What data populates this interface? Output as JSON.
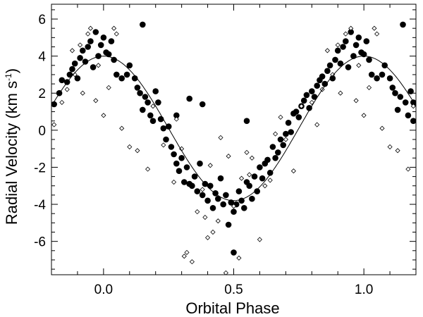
{
  "chart_data": {
    "type": "scatter",
    "xlabel": "Orbital Phase",
    "ylabel_main": "Radial Velocity (km s",
    "ylabel_sup": "-1",
    "ylabel_close": ")",
    "xlim": [
      -0.2,
      1.2
    ],
    "ylim": [
      -7.8,
      6.8
    ],
    "x_ticks": [
      {
        "value": 0.0,
        "label": "0.0"
      },
      {
        "value": 0.5,
        "label": "0.5"
      },
      {
        "value": 1.0,
        "label": "1.0"
      }
    ],
    "y_ticks": [
      {
        "value": -6,
        "label": "-6"
      },
      {
        "value": -4,
        "label": "-4"
      },
      {
        "value": -2,
        "label": "-2"
      },
      {
        "value": 0,
        "label": "0"
      },
      {
        "value": 2,
        "label": "2"
      },
      {
        "value": 4,
        "label": "4"
      },
      {
        "value": 6,
        "label": "6"
      }
    ],
    "grid": false,
    "series": [
      {
        "marker": "filled-circle",
        "points": [
          [
            -0.19,
            1.4
          ],
          [
            -0.17,
            2.0
          ],
          [
            -0.16,
            2.7
          ],
          [
            -0.14,
            2.6
          ],
          [
            -0.13,
            3.0
          ],
          [
            -0.12,
            3.3
          ],
          [
            -0.11,
            3.6
          ],
          [
            -0.1,
            2.8
          ],
          [
            -0.09,
            3.9
          ],
          [
            -0.08,
            4.3
          ],
          [
            -0.07,
            3.7
          ],
          [
            -0.06,
            4.5
          ],
          [
            -0.05,
            4.8
          ],
          [
            -0.04,
            3.4
          ],
          [
            -0.03,
            5.3
          ],
          [
            -0.02,
            4.0
          ],
          [
            -0.01,
            4.6
          ],
          [
            0.0,
            5.0
          ],
          [
            0.01,
            4.2
          ],
          [
            0.02,
            4.1
          ],
          [
            0.03,
            4.8
          ],
          [
            0.04,
            3.8
          ],
          [
            0.05,
            3.0
          ],
          [
            0.07,
            2.8
          ],
          [
            0.09,
            3.0
          ],
          [
            0.1,
            3.5
          ],
          [
            0.12,
            2.8
          ],
          [
            0.13,
            2.3
          ],
          [
            0.14,
            2.0
          ],
          [
            0.15,
            1.1
          ],
          [
            0.15,
            5.7
          ],
          [
            0.16,
            1.8
          ],
          [
            0.17,
            1.5
          ],
          [
            0.18,
            0.8
          ],
          [
            0.19,
            0.5
          ],
          [
            0.2,
            2.1
          ],
          [
            0.21,
            1.5
          ],
          [
            0.22,
            0.6
          ],
          [
            0.23,
            0.1
          ],
          [
            0.24,
            -0.5
          ],
          [
            0.25,
            0.2
          ],
          [
            0.26,
            -0.9
          ],
          [
            0.27,
            -1.3
          ],
          [
            0.28,
            -1.8
          ],
          [
            0.28,
            0.8
          ],
          [
            0.29,
            -2.2
          ],
          [
            0.3,
            -1.5
          ],
          [
            0.31,
            -2.8
          ],
          [
            0.32,
            -2.0
          ],
          [
            0.33,
            -2.9
          ],
          [
            0.33,
            1.7
          ],
          [
            0.34,
            -3.0
          ],
          [
            0.35,
            -2.5
          ],
          [
            0.36,
            -3.3
          ],
          [
            0.37,
            -1.8
          ],
          [
            0.38,
            -3.5
          ],
          [
            0.38,
            1.4
          ],
          [
            0.39,
            -2.9
          ],
          [
            0.4,
            -3.8
          ],
          [
            0.41,
            -3.0
          ],
          [
            0.42,
            -4.2
          ],
          [
            0.43,
            -3.4
          ],
          [
            0.44,
            -3.7
          ],
          [
            0.45,
            -2.6
          ],
          [
            0.46,
            -4.0
          ],
          [
            0.47,
            -3.5
          ],
          [
            0.48,
            -5.1
          ],
          [
            0.49,
            -3.9
          ],
          [
            0.5,
            -4.4
          ],
          [
            0.5,
            -6.6
          ],
          [
            0.51,
            -4.0
          ],
          [
            0.52,
            -3.3
          ],
          [
            0.53,
            -3.8
          ],
          [
            0.54,
            -4.2
          ],
          [
            0.55,
            -2.8
          ],
          [
            0.55,
            0.5
          ],
          [
            0.56,
            -3.0
          ],
          [
            0.57,
            -3.7
          ],
          [
            0.58,
            -2.5
          ],
          [
            0.59,
            -3.3
          ],
          [
            0.6,
            -2.0
          ],
          [
            0.61,
            -2.6
          ],
          [
            0.62,
            -1.8
          ],
          [
            0.63,
            -1.6
          ],
          [
            0.64,
            -2.3
          ],
          [
            0.65,
            -0.9
          ],
          [
            0.66,
            -1.5
          ],
          [
            0.67,
            -1.2
          ],
          [
            0.68,
            -0.5
          ],
          [
            0.69,
            -0.8
          ],
          [
            0.7,
            -0.2
          ],
          [
            0.71,
            0.4
          ],
          [
            0.72,
            -0.1
          ],
          [
            0.73,
            0.9
          ],
          [
            0.74,
            1.0
          ],
          [
            0.75,
            0.7
          ],
          [
            0.76,
            1.3
          ],
          [
            0.77,
            1.6
          ],
          [
            0.78,
            1.9
          ],
          [
            0.79,
            1.2
          ],
          [
            0.8,
            2.1
          ],
          [
            0.81,
            1.8
          ],
          [
            0.82,
            2.4
          ],
          [
            0.83,
            2.7
          ],
          [
            0.84,
            2.9
          ],
          [
            0.85,
            2.5
          ],
          [
            0.86,
            3.2
          ],
          [
            0.87,
            3.5
          ],
          [
            0.88,
            2.8
          ],
          [
            0.89,
            3.8
          ],
          [
            0.9,
            4.3
          ],
          [
            0.91,
            3.6
          ],
          [
            0.92,
            4.5
          ],
          [
            0.93,
            4.8
          ],
          [
            0.94,
            3.4
          ],
          [
            0.95,
            5.3
          ],
          [
            0.96,
            4.0
          ],
          [
            0.97,
            4.6
          ],
          [
            0.98,
            5.0
          ],
          [
            0.99,
            4.2
          ],
          [
            1.0,
            4.1
          ],
          [
            1.01,
            4.8
          ],
          [
            1.02,
            3.8
          ],
          [
            1.03,
            3.0
          ],
          [
            1.05,
            2.8
          ],
          [
            1.07,
            3.0
          ],
          [
            1.08,
            3.5
          ],
          [
            1.1,
            2.8
          ],
          [
            1.11,
            2.3
          ],
          [
            1.12,
            2.0
          ],
          [
            1.13,
            1.1
          ],
          [
            1.14,
            1.8
          ],
          [
            1.15,
            5.7
          ],
          [
            1.16,
            1.5
          ],
          [
            1.17,
            0.8
          ],
          [
            1.18,
            2.1
          ],
          [
            1.19,
            0.5
          ],
          [
            1.19,
            1.5
          ]
        ]
      },
      {
        "marker": "open-diamond",
        "points": [
          [
            -0.19,
            0.3
          ],
          [
            -0.16,
            1.5
          ],
          [
            -0.14,
            2.2
          ],
          [
            -0.12,
            4.3
          ],
          [
            -0.11,
            3.0
          ],
          [
            -0.09,
            4.6
          ],
          [
            -0.08,
            2.0
          ],
          [
            -0.06,
            5.2
          ],
          [
            -0.05,
            5.5
          ],
          [
            -0.03,
            1.6
          ],
          [
            -0.02,
            3.5
          ],
          [
            0.0,
            0.8
          ],
          [
            0.02,
            2.3
          ],
          [
            0.04,
            5.5
          ],
          [
            0.05,
            5.2
          ],
          [
            0.07,
            0.1
          ],
          [
            0.1,
            -0.9
          ],
          [
            0.13,
            -1.1
          ],
          [
            0.17,
            -2.1
          ],
          [
            0.19,
            1.3
          ],
          [
            0.23,
            -0.8
          ],
          [
            0.27,
            -2.8
          ],
          [
            0.28,
            0.6
          ],
          [
            0.3,
            -1.0
          ],
          [
            0.31,
            -6.8
          ],
          [
            0.32,
            -6.6
          ],
          [
            0.34,
            -7.1
          ],
          [
            0.36,
            -4.4
          ],
          [
            0.38,
            -3.2
          ],
          [
            0.39,
            -4.7
          ],
          [
            0.4,
            -5.8
          ],
          [
            0.41,
            -1.9
          ],
          [
            0.42,
            -5.5
          ],
          [
            0.44,
            -4.9
          ],
          [
            0.45,
            -0.4
          ],
          [
            0.47,
            -7.7
          ],
          [
            0.48,
            -1.4
          ],
          [
            0.5,
            -4.1
          ],
          [
            0.52,
            -6.9
          ],
          [
            0.53,
            -2.6
          ],
          [
            0.55,
            -1.2
          ],
          [
            0.56,
            -2.4
          ],
          [
            0.57,
            -1.5
          ],
          [
            0.6,
            -5.9
          ],
          [
            0.62,
            -3.0
          ],
          [
            0.64,
            -2.7
          ],
          [
            0.66,
            -0.2
          ],
          [
            0.68,
            0.7
          ],
          [
            0.7,
            -0.5
          ],
          [
            0.73,
            -2.2
          ],
          [
            0.76,
            1.3
          ],
          [
            0.8,
            1.5
          ],
          [
            0.82,
            0.3
          ],
          [
            0.84,
            2.2
          ],
          [
            0.86,
            4.3
          ],
          [
            0.88,
            3.0
          ],
          [
            0.9,
            4.6
          ],
          [
            0.91,
            2.0
          ],
          [
            0.93,
            5.2
          ],
          [
            0.95,
            5.5
          ],
          [
            0.97,
            1.6
          ],
          [
            0.98,
            3.5
          ],
          [
            1.0,
            0.8
          ],
          [
            1.02,
            2.3
          ],
          [
            1.04,
            5.5
          ],
          [
            1.05,
            5.2
          ],
          [
            1.07,
            0.1
          ],
          [
            1.1,
            -0.9
          ],
          [
            1.13,
            -1.1
          ],
          [
            1.17,
            -2.1
          ],
          [
            1.19,
            1.3
          ]
        ]
      }
    ],
    "model_curve": {
      "gamma": 0.1,
      "amplitude": 3.9,
      "phase_of_max": 0.0
    }
  }
}
